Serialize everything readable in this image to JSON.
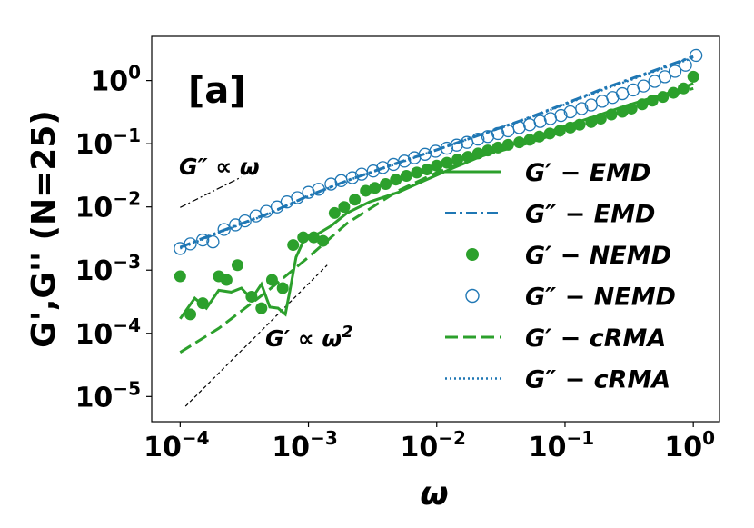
{
  "chart_data": {
    "type": "line",
    "scale": "log-log",
    "panel_label": "[a]",
    "xlabel": "ω",
    "ylabel": "G',G'' (N=25)",
    "xlim": [
      6e-05,
      1.6
    ],
    "ylim": [
      4e-06,
      5
    ],
    "x_ticks": [
      {
        "value": 0.0001,
        "base": "10",
        "exp": "−4"
      },
      {
        "value": 0.001,
        "base": "10",
        "exp": "−3"
      },
      {
        "value": 0.01,
        "base": "10",
        "exp": "−2"
      },
      {
        "value": 0.1,
        "base": "10",
        "exp": "−1"
      },
      {
        "value": 1,
        "base": "10",
        "exp": "0"
      }
    ],
    "y_ticks": [
      {
        "value": 1e-05,
        "base": "10",
        "exp": "−5"
      },
      {
        "value": 0.0001,
        "base": "10",
        "exp": "−4"
      },
      {
        "value": 0.001,
        "base": "10",
        "exp": "−3"
      },
      {
        "value": 0.01,
        "base": "10",
        "exp": "−2"
      },
      {
        "value": 0.1,
        "base": "10",
        "exp": "−1"
      },
      {
        "value": 1,
        "base": "10",
        "exp": "0"
      }
    ],
    "series": [
      {
        "name": "G' − EMD",
        "label_text": "G′ − EMD",
        "style": "solid",
        "color": "#2ca02c",
        "x": [
          0.0001,
          0.00013,
          0.00016,
          0.0002,
          0.00025,
          0.0003,
          0.00036,
          0.00043,
          0.0005,
          0.00058,
          0.00066,
          0.00072,
          0.0008,
          0.0009,
          0.001,
          0.0012,
          0.0015,
          0.002,
          0.003,
          0.005,
          0.008,
          0.013,
          0.02,
          0.035,
          0.06,
          0.1,
          0.18,
          0.3,
          0.5,
          0.75,
          1.0
        ],
        "y": [
          0.00017,
          0.00036,
          0.00025,
          0.00048,
          0.00045,
          0.00052,
          0.00035,
          0.0006,
          0.00026,
          0.00025,
          0.0002,
          0.0005,
          0.0016,
          0.0027,
          0.0032,
          0.0038,
          0.005,
          0.008,
          0.012,
          0.017,
          0.026,
          0.04,
          0.058,
          0.09,
          0.13,
          0.19,
          0.28,
          0.4,
          0.55,
          0.7,
          0.9
        ]
      },
      {
        "name": "G'' − EMD",
        "label_text": "G″ − EMD",
        "style": "dashdot",
        "color": "#1f77b4",
        "x": [
          0.0001,
          0.0002,
          0.0005,
          0.001,
          0.002,
          0.005,
          0.01,
          0.02,
          0.05,
          0.1,
          0.2,
          0.5,
          1.0
        ],
        "y": [
          0.0023,
          0.004,
          0.008,
          0.015,
          0.026,
          0.05,
          0.08,
          0.13,
          0.25,
          0.43,
          0.75,
          1.45,
          2.4
        ]
      },
      {
        "name": "G' − NEMD",
        "label_text": "G′ − NEMD",
        "style": "filled-circle",
        "color": "#2ca02c",
        "x": [
          0.0001,
          0.00012,
          0.00015,
          0.0002,
          0.00023,
          0.00028,
          0.00036,
          0.00043,
          0.00052,
          0.00063,
          0.00076,
          0.00091,
          0.0011,
          0.0013,
          0.0016,
          0.0019,
          0.0023,
          0.0028,
          0.0033,
          0.004,
          0.0048,
          0.0058,
          0.007,
          0.0084,
          0.01,
          0.012,
          0.0145,
          0.0175,
          0.021,
          0.025,
          0.03,
          0.036,
          0.044,
          0.053,
          0.063,
          0.076,
          0.091,
          0.11,
          0.13,
          0.16,
          0.19,
          0.23,
          0.28,
          0.33,
          0.4,
          0.48,
          0.58,
          0.7,
          0.84,
          1.0
        ],
        "y": [
          0.0008,
          0.0002,
          0.0003,
          0.0008,
          0.0007,
          0.0012,
          0.00038,
          0.00025,
          0.0007,
          0.00052,
          0.0025,
          0.0033,
          0.0033,
          0.0029,
          0.008,
          0.01,
          0.013,
          0.018,
          0.02,
          0.023,
          0.027,
          0.031,
          0.035,
          0.039,
          0.045,
          0.05,
          0.056,
          0.062,
          0.07,
          0.078,
          0.087,
          0.096,
          0.105,
          0.115,
          0.13,
          0.145,
          0.16,
          0.18,
          0.2,
          0.22,
          0.25,
          0.29,
          0.32,
          0.36,
          0.42,
          0.48,
          0.55,
          0.64,
          0.75,
          1.15
        ]
      },
      {
        "name": "G'' − NEMD",
        "label_text": "G″ − NEMD",
        "style": "open-circle",
        "color": "#1f77b4",
        "x": [
          0.0001,
          0.00012,
          0.00015,
          0.00018,
          0.00022,
          0.00027,
          0.00032,
          0.00039,
          0.00047,
          0.00057,
          0.00068,
          0.00082,
          0.001,
          0.0012,
          0.0015,
          0.0018,
          0.0022,
          0.0026,
          0.0032,
          0.0038,
          0.0046,
          0.0056,
          0.0067,
          0.0081,
          0.0098,
          0.012,
          0.0143,
          0.0172,
          0.021,
          0.025,
          0.03,
          0.036,
          0.044,
          0.053,
          0.064,
          0.077,
          0.093,
          0.11,
          0.135,
          0.16,
          0.195,
          0.235,
          0.28,
          0.34,
          0.41,
          0.5,
          0.6,
          0.72,
          0.87,
          1.05
        ],
        "y": [
          0.0022,
          0.0026,
          0.003,
          0.0028,
          0.0044,
          0.0052,
          0.006,
          0.0072,
          0.0085,
          0.01,
          0.012,
          0.014,
          0.017,
          0.019,
          0.023,
          0.026,
          0.029,
          0.033,
          0.037,
          0.042,
          0.047,
          0.053,
          0.06,
          0.068,
          0.076,
          0.085,
          0.095,
          0.105,
          0.118,
          0.13,
          0.145,
          0.16,
          0.18,
          0.2,
          0.225,
          0.25,
          0.28,
          0.32,
          0.36,
          0.41,
          0.47,
          0.54,
          0.62,
          0.71,
          0.82,
          0.97,
          1.15,
          1.4,
          1.75,
          2.5
        ]
      },
      {
        "name": "G' − cRMA",
        "label_text": "G′ − cRMA",
        "style": "dashed",
        "color": "#2ca02c",
        "x": [
          0.0001,
          0.0002,
          0.0005,
          0.001,
          0.002,
          0.005,
          0.01,
          0.02,
          0.05,
          0.1,
          0.2,
          0.5,
          1.0
        ],
        "y": [
          5e-05,
          0.00012,
          0.0005,
          0.0016,
          0.0055,
          0.018,
          0.035,
          0.06,
          0.1,
          0.16,
          0.27,
          0.5,
          0.75
        ]
      },
      {
        "name": "G'' − cRMA",
        "label_text": "G″ − cRMA",
        "style": "dotted",
        "color": "#1f77b4",
        "x": [
          0.0001,
          0.0002,
          0.0005,
          0.001,
          0.002,
          0.005,
          0.01,
          0.02,
          0.05,
          0.1,
          0.2,
          0.5,
          1.0
        ],
        "y": [
          0.0022,
          0.0039,
          0.0079,
          0.0148,
          0.026,
          0.049,
          0.08,
          0.13,
          0.245,
          0.42,
          0.72,
          1.4,
          2.3
        ]
      }
    ],
    "reference_lines": [
      {
        "name": "G'' ∝ ω",
        "style": "dashdot",
        "color": "#000000",
        "x": [
          0.0001,
          0.0003
        ],
        "y": [
          0.0098,
          0.0296
        ]
      },
      {
        "name": "G' ∝ ω²",
        "style": "dashed",
        "color": "#000000",
        "x": [
          0.00011,
          0.0014
        ],
        "y": [
          7e-06,
          0.0012
        ]
      }
    ],
    "annotations": [
      {
        "text": "G″ ∝ ω"
      },
      {
        "text": "G′ ∝ ω",
        "superscript": "2"
      }
    ]
  }
}
